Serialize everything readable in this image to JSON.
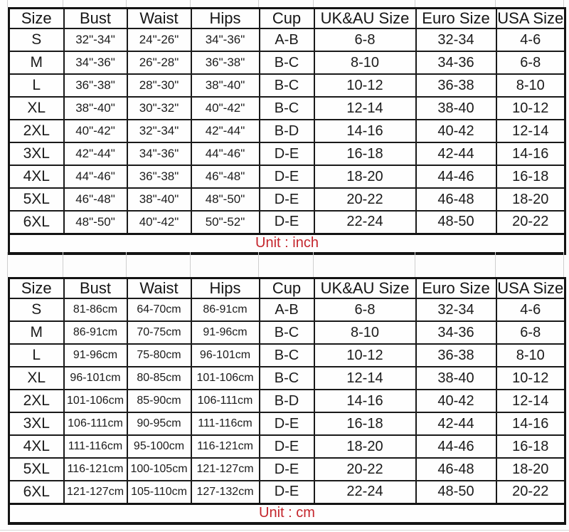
{
  "colors": {
    "unit_text": "#c4252c",
    "table_border": "#131313",
    "cell_text": "#1b1b1b",
    "background": "#fdfdfd",
    "faint_gridline": "#cfcfcf"
  },
  "chart_data": [
    {
      "type": "table",
      "unit_label": "Unit : inch",
      "columns": [
        "Size",
        "Bust",
        "Waist",
        "Hips",
        "Cup",
        "UK&AU Size",
        "Euro Size",
        "USA Size"
      ],
      "rows": [
        [
          "S",
          "32\"-34\"",
          "24\"-26\"",
          "34\"-36\"",
          "A-B",
          "6-8",
          "32-34",
          "4-6"
        ],
        [
          "M",
          "34\"-36\"",
          "26\"-28\"",
          "36\"-38\"",
          "B-C",
          "8-10",
          "34-36",
          "6-8"
        ],
        [
          "L",
          "36\"-38\"",
          "28\"-30\"",
          "38\"-40\"",
          "B-C",
          "10-12",
          "36-38",
          "8-10"
        ],
        [
          "XL",
          "38\"-40\"",
          "30\"-32\"",
          "40\"-42\"",
          "B-C",
          "12-14",
          "38-40",
          "10-12"
        ],
        [
          "2XL",
          "40\"-42\"",
          "32\"-34\"",
          "42\"-44\"",
          "B-D",
          "14-16",
          "40-42",
          "12-14"
        ],
        [
          "3XL",
          "42\"-44\"",
          "34\"-36\"",
          "44\"-46\"",
          "D-E",
          "16-18",
          "42-44",
          "14-16"
        ],
        [
          "4XL",
          "44\"-46\"",
          "36\"-38\"",
          "46\"-48\"",
          "D-E",
          "18-20",
          "44-46",
          "16-18"
        ],
        [
          "5XL",
          "46\"-48\"",
          "38\"-40\"",
          "48\"-50\"",
          "D-E",
          "20-22",
          "46-48",
          "18-20"
        ],
        [
          "6XL",
          "48\"-50\"",
          "40\"-42\"",
          "50\"-52\"",
          "D-E",
          "22-24",
          "48-50",
          "20-22"
        ]
      ]
    },
    {
      "type": "table",
      "unit_label": "Unit : cm",
      "columns": [
        "Size",
        "Bust",
        "Waist",
        "Hips",
        "Cup",
        "UK&AU Size",
        "Euro Size",
        "USA Size"
      ],
      "rows": [
        [
          "S",
          "81-86cm",
          "64-70cm",
          "86-91cm",
          "A-B",
          "6-8",
          "32-34",
          "4-6"
        ],
        [
          "M",
          "86-91cm",
          "70-75cm",
          "91-96cm",
          "B-C",
          "8-10",
          "34-36",
          "6-8"
        ],
        [
          "L",
          "91-96cm",
          "75-80cm",
          "96-101cm",
          "B-C",
          "10-12",
          "36-38",
          "8-10"
        ],
        [
          "XL",
          "96-101cm",
          "80-85cm",
          "101-106cm",
          "B-C",
          "12-14",
          "38-40",
          "10-12"
        ],
        [
          "2XL",
          "101-106cm",
          "85-90cm",
          "106-111cm",
          "B-D",
          "14-16",
          "40-42",
          "12-14"
        ],
        [
          "3XL",
          "106-111cm",
          "90-95cm",
          "111-116cm",
          "D-E",
          "16-18",
          "42-44",
          "14-16"
        ],
        [
          "4XL",
          "111-116cm",
          "95-100cm",
          "116-121cm",
          "D-E",
          "18-20",
          "44-46",
          "16-18"
        ],
        [
          "5XL",
          "116-121cm",
          "100-105cm",
          "121-127cm",
          "D-E",
          "20-22",
          "46-48",
          "18-20"
        ],
        [
          "6XL",
          "121-127cm",
          "105-110cm",
          "127-132cm",
          "D-E",
          "22-24",
          "48-50",
          "20-22"
        ]
      ]
    }
  ]
}
